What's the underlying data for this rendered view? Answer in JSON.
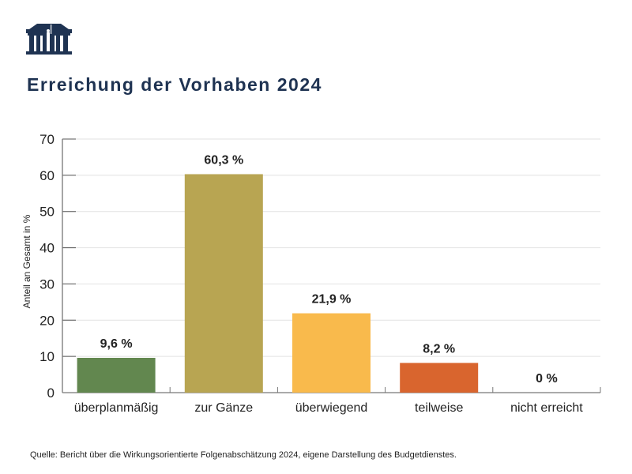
{
  "logo": {
    "icon": "parliament-building-icon",
    "color": "#1f3352"
  },
  "title": "Erreichung der Vorhaben 2024",
  "source": "Quelle: Bericht über die Wirkungsorientierte Folgenabschätzung 2024, eigene Darstellung des Budgetdienstes.",
  "chart_data": {
    "type": "bar",
    "title": "Erreichung der Vorhaben 2024",
    "xlabel": "",
    "ylabel": "Anteil an Gesamt in %",
    "ylim": [
      0,
      70
    ],
    "yticks": [
      "0",
      "10",
      "20",
      "30",
      "40",
      "50",
      "60",
      "70"
    ],
    "grid": true,
    "categories": [
      "überplanmäßig",
      "zur Gänze",
      "überwiegend",
      "teilweise",
      "nicht erreicht"
    ],
    "values": [
      9.6,
      60.3,
      21.9,
      8.2,
      0
    ],
    "data_labels": [
      "9,6 %",
      "60,3 %",
      "21,9 %",
      "8,2 %",
      "0 %"
    ],
    "colors": [
      "#62874f",
      "#b8a552",
      "#f9ba4c",
      "#d9652e",
      "#999999"
    ]
  }
}
